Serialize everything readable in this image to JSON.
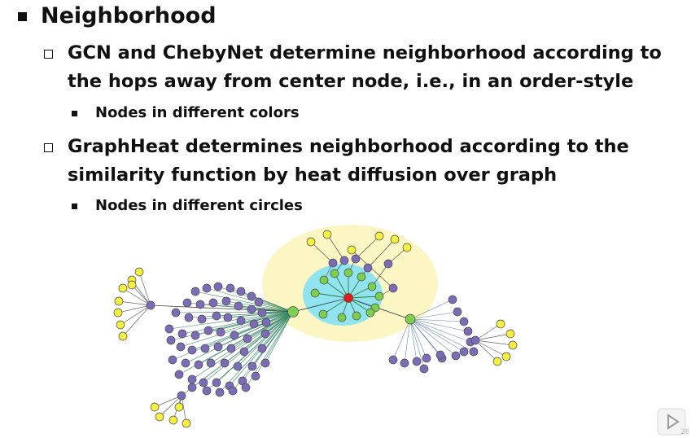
{
  "heading": "Neighborhood",
  "bullets": [
    {
      "text": "GCN and ChebyNet determine neighborhood according to the hops away from center node, i.e., in an order-style",
      "sub": "Nodes in different colors"
    },
    {
      "text": "GraphHeat determines neighborhood according to the similarity function by heat diffusion over graph",
      "sub": "Nodes in different circles"
    }
  ],
  "page_number": "28",
  "colors": {
    "center_node": "#e21b1b",
    "hop1_node": "#7ecf4f",
    "hop2_node": "#7c6cb8",
    "outer_node": "#f2ef40",
    "inner_region": "#8fe4f0",
    "outer_region": "#fbf6c4"
  },
  "icons": {
    "play": "play-icon"
  }
}
